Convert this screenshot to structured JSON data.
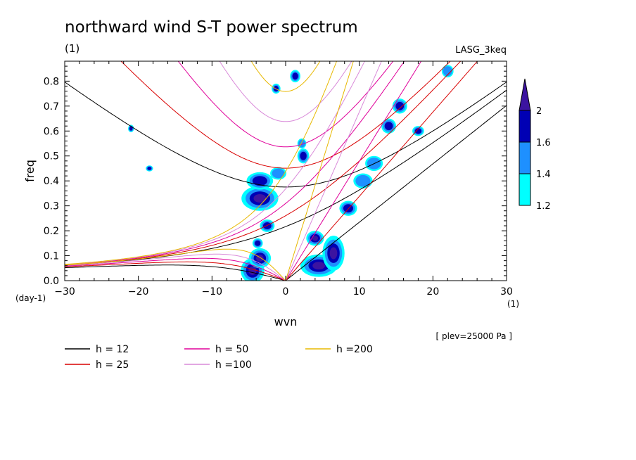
{
  "chart_data": {
    "type": "heatmap",
    "title": "northward wind S-T power spectrum",
    "subtitle_left": "(1)",
    "subtitle_right": "LASG_3keq",
    "xlabel": "wvn",
    "ylabel": "freq",
    "x_unit": "(1)",
    "y_unit": "(day-1)",
    "xlim": [
      -30,
      30
    ],
    "ylim": [
      0,
      0.88
    ],
    "x_ticks": [
      -30,
      -20,
      -10,
      0,
      10,
      20,
      30
    ],
    "x_tick_labels": [
      "−30",
      "−20",
      "−10",
      "0",
      "10",
      "20",
      "30"
    ],
    "y_ticks": [
      0,
      0.1,
      0.2,
      0.3,
      0.4,
      0.5,
      0.6,
      0.7,
      0.8
    ],
    "y_tick_labels": [
      "0.0",
      "0.1",
      "0.2",
      "0.3",
      "0.4",
      "0.5",
      "0.6",
      "0.7",
      "0.8"
    ],
    "annotation": "[ plev=25000 Pa ]",
    "colorbar": {
      "levels": [
        "1.2",
        "1.4",
        "1.6",
        "2"
      ],
      "colors": [
        "#00ffff",
        "#1e90ff",
        "#0000b4",
        "#3c14a0"
      ]
    },
    "dispersion_curves": [
      {
        "label": "h = 12",
        "h": 12,
        "color": "#000000"
      },
      {
        "label": "h = 25",
        "h": 25,
        "color": "#d90000"
      },
      {
        "label": "h = 50",
        "h": 50,
        "color": "#e0009a"
      },
      {
        "label": "h =100",
        "h": 100,
        "color": "#d98ad9"
      },
      {
        "label": "h =200",
        "h": 200,
        "color": "#e8b800"
      }
    ],
    "blobs": [
      {
        "x": -4.5,
        "y": 0.04,
        "rx": 1.6,
        "ry": 0.05,
        "level": 3
      },
      {
        "x": -3.5,
        "y": 0.09,
        "rx": 1.5,
        "ry": 0.04,
        "level": 3
      },
      {
        "x": -3.5,
        "y": 0.33,
        "rx": 2.5,
        "ry": 0.05,
        "level": 3
      },
      {
        "x": -3.5,
        "y": 0.4,
        "rx": 1.8,
        "ry": 0.035,
        "level": 2
      },
      {
        "x": -2.5,
        "y": 0.22,
        "rx": 1.0,
        "ry": 0.025,
        "level": 2
      },
      {
        "x": -3.8,
        "y": 0.15,
        "rx": 0.7,
        "ry": 0.02,
        "level": 2
      },
      {
        "x": -1.0,
        "y": 0.43,
        "rx": 1.1,
        "ry": 0.025,
        "level": 1
      },
      {
        "x": 2.4,
        "y": 0.5,
        "rx": 0.8,
        "ry": 0.03,
        "level": 2
      },
      {
        "x": 2.2,
        "y": 0.55,
        "rx": 0.6,
        "ry": 0.02,
        "level": 1
      },
      {
        "x": 4.5,
        "y": 0.06,
        "rx": 2.5,
        "ry": 0.045,
        "level": 3
      },
      {
        "x": 4.0,
        "y": 0.17,
        "rx": 1.2,
        "ry": 0.03,
        "level": 3
      },
      {
        "x": 6.5,
        "y": 0.11,
        "rx": 1.5,
        "ry": 0.07,
        "level": 3
      },
      {
        "x": 8.5,
        "y": 0.29,
        "rx": 1.2,
        "ry": 0.03,
        "level": 2
      },
      {
        "x": 10.5,
        "y": 0.4,
        "rx": 1.3,
        "ry": 0.03,
        "level": 1
      },
      {
        "x": 12.0,
        "y": 0.47,
        "rx": 1.2,
        "ry": 0.03,
        "level": 1
      },
      {
        "x": 14.0,
        "y": 0.62,
        "rx": 1.0,
        "ry": 0.03,
        "level": 2
      },
      {
        "x": 15.5,
        "y": 0.7,
        "rx": 1.0,
        "ry": 0.03,
        "level": 2
      },
      {
        "x": 18.0,
        "y": 0.6,
        "rx": 0.8,
        "ry": 0.02,
        "level": 2
      },
      {
        "x": 22.0,
        "y": 0.84,
        "rx": 0.8,
        "ry": 0.025,
        "level": 1
      },
      {
        "x": -18.5,
        "y": 0.45,
        "rx": 0.5,
        "ry": 0.012,
        "level": 2
      },
      {
        "x": -1.3,
        "y": 0.77,
        "rx": 0.6,
        "ry": 0.02,
        "level": 2
      },
      {
        "x": 1.3,
        "y": 0.82,
        "rx": 0.7,
        "ry": 0.025,
        "level": 2
      },
      {
        "x": -21.0,
        "y": 0.61,
        "rx": 0.4,
        "ry": 0.015,
        "level": 2
      }
    ]
  }
}
